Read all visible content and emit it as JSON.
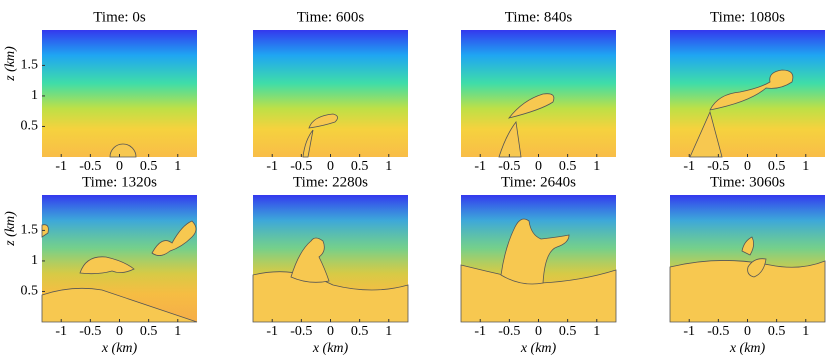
{
  "chart_data": [
    {
      "type": "image",
      "title": "Time: 0s",
      "xlim": [
        -1.33,
        1.33
      ],
      "ylim": [
        0,
        2.08
      ],
      "xticks": [
        -1,
        -0.5,
        0,
        0.5,
        1
      ],
      "yticks": [
        0.5,
        1,
        1.5
      ],
      "ylabel": "z (km)"
    },
    {
      "type": "image",
      "title": "Time: 600s",
      "xlim": [
        -1.33,
        1.33
      ],
      "ylim": [
        0,
        2.08
      ],
      "xticks": [
        -1,
        -0.5,
        0,
        0.5,
        1
      ]
    },
    {
      "type": "image",
      "title": "Time: 840s",
      "xlim": [
        -1.33,
        1.33
      ],
      "ylim": [
        0,
        2.08
      ],
      "xticks": [
        -1,
        -0.5,
        0,
        0.5,
        1
      ]
    },
    {
      "type": "image",
      "title": "Time: 1080s",
      "xlim": [
        -1.33,
        1.33
      ],
      "ylim": [
        0,
        2.08
      ],
      "xticks": [
        -1,
        -0.5,
        0,
        0.5,
        1
      ]
    },
    {
      "type": "image",
      "title": "Time: 1320s",
      "xlim": [
        -1.33,
        1.33
      ],
      "ylim": [
        0,
        2.08
      ],
      "xticks": [
        -1,
        -0.5,
        0,
        0.5,
        1
      ],
      "yticks": [
        0.5,
        1,
        1.5
      ],
      "ylabel": "z (km)",
      "xlabel": "x (km)"
    },
    {
      "type": "image",
      "title": "Time: 2280s",
      "xlim": [
        -1.33,
        1.33
      ],
      "ylim": [
        0,
        2.08
      ],
      "xticks": [
        -1,
        -0.5,
        0,
        0.5,
        1
      ],
      "xlabel": "x (km)"
    },
    {
      "type": "image",
      "title": "Time: 2640s",
      "xlim": [
        -1.33,
        1.33
      ],
      "ylim": [
        0,
        2.08
      ],
      "xticks": [
        -1,
        -0.5,
        0,
        0.5,
        1
      ],
      "xlabel": "x (km)"
    },
    {
      "type": "image",
      "title": "Time: 3060s",
      "xlim": [
        -1.33,
        1.33
      ],
      "ylim": [
        0,
        2.08
      ],
      "xticks": [
        -1,
        -0.5,
        0,
        0.5,
        1
      ],
      "xlabel": "x (km)"
    }
  ]
}
